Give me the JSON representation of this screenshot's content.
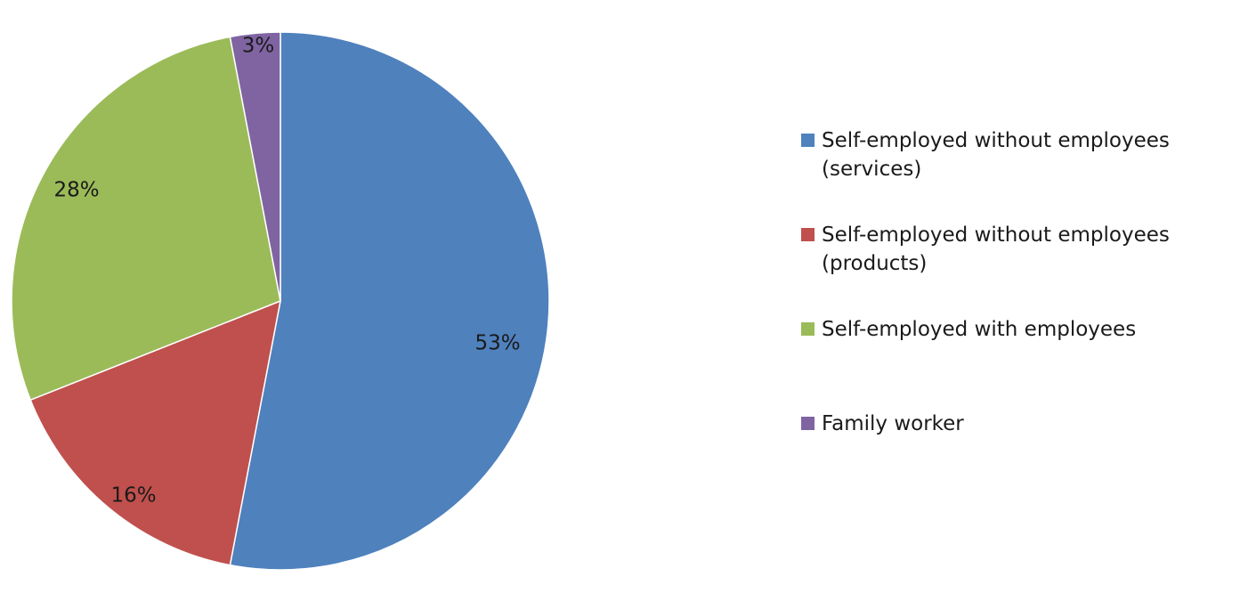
{
  "chart_data": {
    "type": "pie",
    "title": "",
    "start_angle_deg": 0,
    "direction": "clockwise",
    "legend_position": "right",
    "slices": [
      {
        "label": "Self-employed without employees (services)",
        "legend_text": "Self-employed without employees\n(services)",
        "value": 53,
        "data_label": "53%",
        "color": "#4F81BD"
      },
      {
        "label": "Self-employed without employees (products)",
        "legend_text": "Self-employed without employees\n(products)",
        "value": 16,
        "data_label": "16%",
        "color": "#C0504D"
      },
      {
        "label": "Self-employed with employees",
        "legend_text": "Self-employed with employees",
        "value": 28,
        "data_label": "28%",
        "color": "#9BBB59"
      },
      {
        "label": "Family worker",
        "legend_text": "Family worker",
        "value": 3,
        "data_label": "3%",
        "color": "#8064A2"
      }
    ]
  }
}
